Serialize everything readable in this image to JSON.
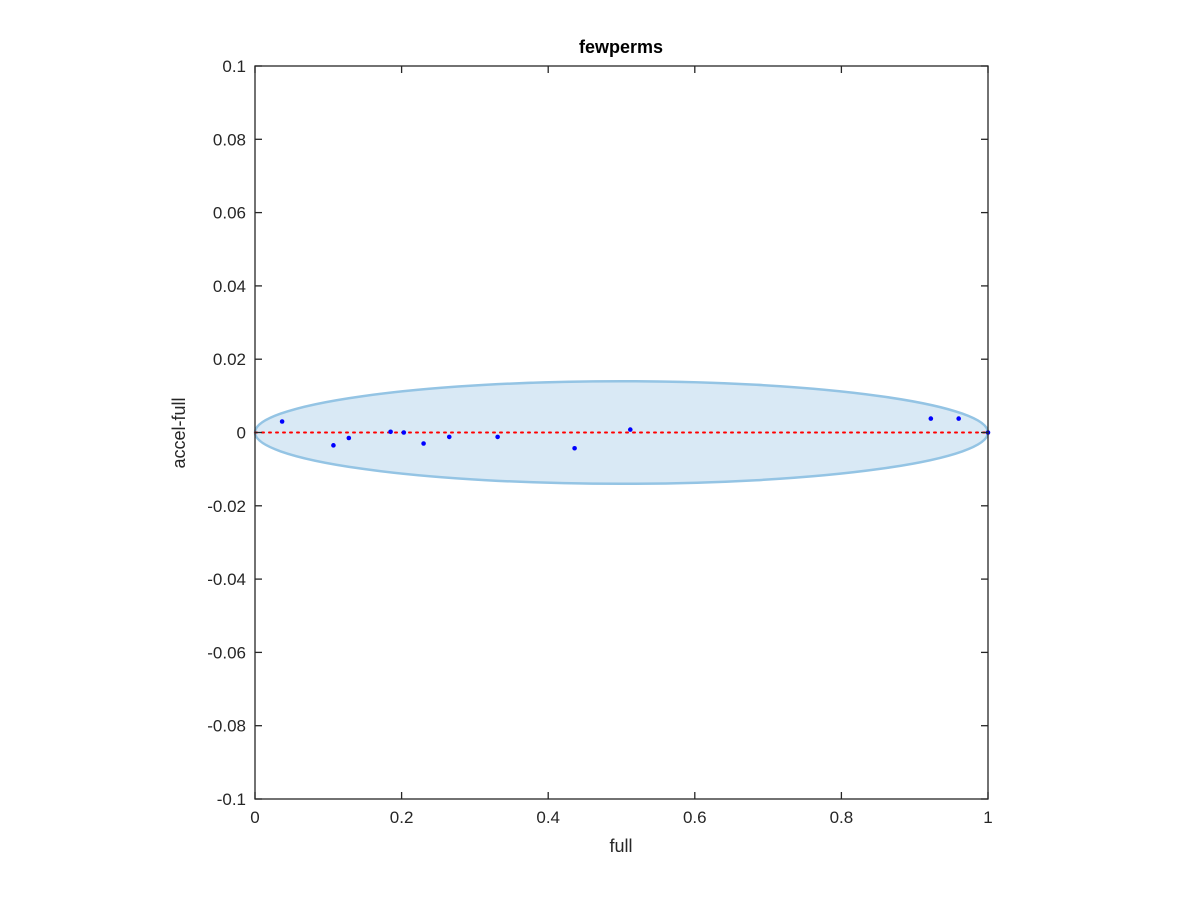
{
  "chart_data": {
    "type": "scatter",
    "title": "fewperms",
    "xlabel": "full",
    "ylabel": "accel-full",
    "xlim": [
      0,
      1
    ],
    "ylim": [
      -0.1,
      0.1
    ],
    "xticks": [
      0,
      0.2,
      0.4,
      0.6,
      0.8,
      1
    ],
    "xtick_labels": [
      "0",
      "0.2",
      "0.4",
      "0.6",
      "0.8",
      "1"
    ],
    "yticks": [
      0.1,
      0.08,
      0.06,
      0.04,
      0.02,
      0,
      -0.02,
      -0.04,
      -0.06,
      -0.08,
      -0.1
    ],
    "ytick_labels": [
      "0.1",
      "0.08",
      "0.06",
      "0.04",
      "0.02",
      "0",
      "-0.02",
      "-0.04",
      "-0.06",
      "-0.08",
      "-0.1"
    ],
    "grid": false,
    "series": [
      {
        "x": [
          0.037,
          0.107,
          0.128,
          0.185,
          0.203,
          0.23,
          0.265,
          0.331,
          0.436,
          0.512,
          0.922,
          0.96,
          1.0
        ],
        "y": [
          0.003,
          -0.0035,
          -0.0015,
          0.0002,
          0.0,
          -0.003,
          -0.0012,
          -0.0012,
          -0.0043,
          0.0008,
          0.0038,
          0.0038,
          0.0
        ],
        "color": "#0000ff"
      }
    ],
    "reference_line": {
      "y": 0,
      "style": "dotted",
      "color": "#ff0000"
    },
    "ellipse": {
      "center": [
        0.5,
        0
      ],
      "x_radius": 0.5,
      "y_radius": 0.014,
      "fill": "#d9e9f5",
      "stroke": "#94c4e4"
    }
  }
}
